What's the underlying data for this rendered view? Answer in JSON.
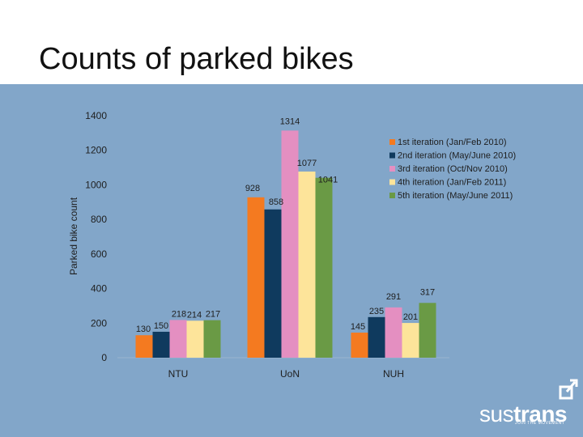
{
  "slide": {
    "title": "Counts of parked bikes"
  },
  "logo": {
    "part1": "sus",
    "part2": "trans",
    "tagline": "JOIN THE MOVEMENT",
    "icon": "arrow-box-icon"
  },
  "colors": {
    "panel": "#82a6c9",
    "series": [
      "#f47a20",
      "#0f3a5e",
      "#e48fc1",
      "#fde49a",
      "#6a9a45"
    ]
  },
  "chart_data": {
    "type": "bar",
    "title": "",
    "xlabel": "",
    "ylabel": "Parked bike count",
    "ylim": [
      0,
      1400
    ],
    "yticks": [
      0,
      200,
      400,
      600,
      800,
      1000,
      1200,
      1400
    ],
    "grid": false,
    "legend_position": "top-right",
    "categories": [
      "NTU",
      "UoN",
      "NUH"
    ],
    "series": [
      {
        "name": "1st iteration (Jan/Feb 2010)",
        "values": [
          130,
          928,
          145
        ]
      },
      {
        "name": "2nd iteration (May/June 2010)",
        "values": [
          150,
          858,
          235
        ]
      },
      {
        "name": "3rd iteration (Oct/Nov 2010)",
        "values": [
          218,
          1314,
          291
        ]
      },
      {
        "name": "4th iteration (Jan/Feb 2011)",
        "values": [
          214,
          1077,
          201
        ]
      },
      {
        "name": "5th iteration (May/June 2011)",
        "values": [
          217,
          1041,
          317
        ]
      }
    ]
  }
}
